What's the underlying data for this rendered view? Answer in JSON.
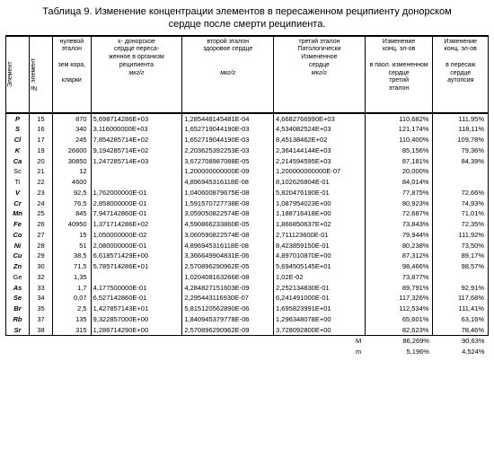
{
  "title_line1": "Таблица 9. Изменение концентрации элементов в пересаженном реципиенту донорском",
  "title_line2": "сердце после смерти реципиента.",
  "headers": {
    "element": "Элемент",
    "no": "№ элемент",
    "col0": "нулевой эталон\nзем кора,\nкларки",
    "colx": "х- донорское сердце переса-\nженное в организм\nреципиента\nмкг/г",
    "col2": "второй эталон\nздоровое сердце\n\nмкг/г",
    "col3": "третий эталон Патологически Измененное сердце\n\nмкг/г",
    "colc1": "Изменение конц. эл-ов\nв паол. измененном сердце третий эталон",
    "colc2": "Изменение конц. эл-ов\nв пересаж сердце аутопсия"
  },
  "rows": [
    {
      "bi": true,
      "el": "P",
      "no": "15",
      "c0": "870",
      "cx": "5,698714286E+03",
      "c2": "1,285448145481E-04",
      "c3": "4,6682766990E+03",
      "p1": "110,682%",
      "p2": "111,95%"
    },
    {
      "bi": true,
      "el": "S",
      "no": "16",
      "c0": "340",
      "cx": "3,116000000E+03",
      "c2": "1,652719044190E-03",
      "c3": "4,534082524E+03",
      "p1": "121,174%",
      "p2": "118,11%"
    },
    {
      "bi": true,
      "el": "Cl",
      "no": "17",
      "c0": "245",
      "cx": "7,854285714E+02",
      "c2": "1,652719044190E-03",
      "c3": "8,45138462E+02",
      "p1": "110,400%",
      "p2": "109,78%"
    },
    {
      "bi": true,
      "el": "K",
      "no": "19",
      "c0": "26600",
      "cx": "9,194285714E+02",
      "c2": "2,203625392253E-03",
      "c3": "2,364144144E+03",
      "p1": "85,156%",
      "p2": "79,36%"
    },
    {
      "bi": true,
      "el": "Ca",
      "no": "20",
      "c0": "30850",
      "cx": "1,247285714E+03",
      "c2": "3,672708987088E-05",
      "c3": "2,214594595E+03",
      "p1": "87,181%",
      "p2": "84,39%"
    },
    {
      "bi": false,
      "el": "Sc",
      "no": "21",
      "c0": "12",
      "cx": "",
      "c2": "1,200000000000E-09",
      "c3": "1,200000000000E-07",
      "p1": "20,000%",
      "p2": ""
    },
    {
      "bi": false,
      "el": "Ti",
      "no": "22",
      "c0": "4600",
      "cx": "",
      "c2": "4,896945316118E-08",
      "c3": "8,102626804E-01",
      "p1": "84,014%",
      "p2": ""
    },
    {
      "bi": true,
      "el": "V",
      "no": "23",
      "c0": "92,5",
      "cx": "1,762000000E-01",
      "c2": "1,040600879675E-08",
      "c3": "5,820476190E-01",
      "p1": "77,875%",
      "p2": "72,66%"
    },
    {
      "bi": true,
      "el": "Cr",
      "no": "24",
      "c0": "76,5",
      "cx": "2,858000000E-01",
      "c2": "1,591570727738E-08",
      "c3": "1,087954023E+00",
      "p1": "80,923%",
      "p2": "74,93%"
    },
    {
      "bi": true,
      "el": "Mn",
      "no": "25",
      "c0": "845",
      "cx": "7,947142860E-01",
      "c2": "3,059050822574E-08",
      "c3": "1,188716418E+00",
      "p1": "72,687%",
      "p2": "71,01%"
    },
    {
      "bi": true,
      "el": "Fe",
      "no": "26",
      "c0": "40950",
      "cx": "1,371714286E+02",
      "c2": "4,590866233860E-05",
      "c3": "1,866850637E+02",
      "p1": "73,843%",
      "p2": "72,35%"
    },
    {
      "bi": true,
      "el": "Co",
      "no": "27",
      "c0": "15",
      "cx": "1,050000000E-02",
      "c2": "3,060590822574E-08",
      "c3": "2,711123600E-01",
      "p1": "79,944%",
      "p2": "111,92%"
    },
    {
      "bi": true,
      "el": "Ni",
      "no": "28",
      "c0": "51",
      "cx": "2,080000000E-01",
      "c2": "4,896945316118E-08",
      "c3": "8,423859150E-01",
      "p1": "80,238%",
      "p2": "73,50%"
    },
    {
      "bi": true,
      "el": "Cu",
      "no": "29",
      "c0": "38,5",
      "cx": "6,618571429E+00",
      "c2": "3,366649904831E-06",
      "c3": "4,897010870E+00",
      "p1": "87,312%",
      "p2": "89,17%"
    },
    {
      "bi": true,
      "el": "Zn",
      "no": "30",
      "c0": "71,5",
      "cx": "5,785714286E+01",
      "c2": "2,570896290962E-05",
      "c3": "5,694505145E+01",
      "p1": "98,466%",
      "p2": "98,57%"
    },
    {
      "bi": false,
      "el": "Ge",
      "no": "32",
      "c0": "1,35",
      "cx": "",
      "c2": "1,020408163266E-08",
      "c3": "1,02E-02",
      "p1": "73,877%",
      "p2": ""
    },
    {
      "bi": true,
      "el": "As",
      "no": "33",
      "c0": "1,7",
      "cx": "4,177500000E-01",
      "c2": "4,284827151603E-09",
      "c3": "2,252134830E-01",
      "p1": "89,791%",
      "p2": "92,91%"
    },
    {
      "bi": true,
      "el": "Se",
      "no": "34",
      "c0": "0,07",
      "cx": "6,527142860E-01",
      "c2": "2,295443116930E-07",
      "c3": "6,241491000E-01",
      "p1": "117,326%",
      "p2": "117,68%"
    },
    {
      "bi": true,
      "el": "Br",
      "no": "35",
      "c0": "2,5",
      "cx": "1,427857143E+01",
      "c2": "5,815120562890E-06",
      "c3": "1,695823991E+01",
      "p1": "112,534%",
      "p2": "111,41%"
    },
    {
      "bi": true,
      "el": "Rb",
      "no": "37",
      "c0": "135",
      "cx": "9,322857000E+00",
      "c2": "1,840945379778E-06",
      "c3": "1,296348078E+00",
      "p1": "65,601%",
      "p2": "63,16%"
    },
    {
      "bi": true,
      "el": "Sr",
      "no": "38",
      "c0": "315",
      "cx": "1,286714290E+00",
      "c2": "2,570896290962E-09",
      "c3": "3,728092800E+00",
      "p1": "82,623%",
      "p2": "78,46%"
    }
  ],
  "footer": {
    "M_label": "M",
    "M_p1": "86,269%",
    "M_p2": "90,63%",
    "m_label": "m",
    "m_p1": "5,196%",
    "m_p2": "4,524%"
  }
}
